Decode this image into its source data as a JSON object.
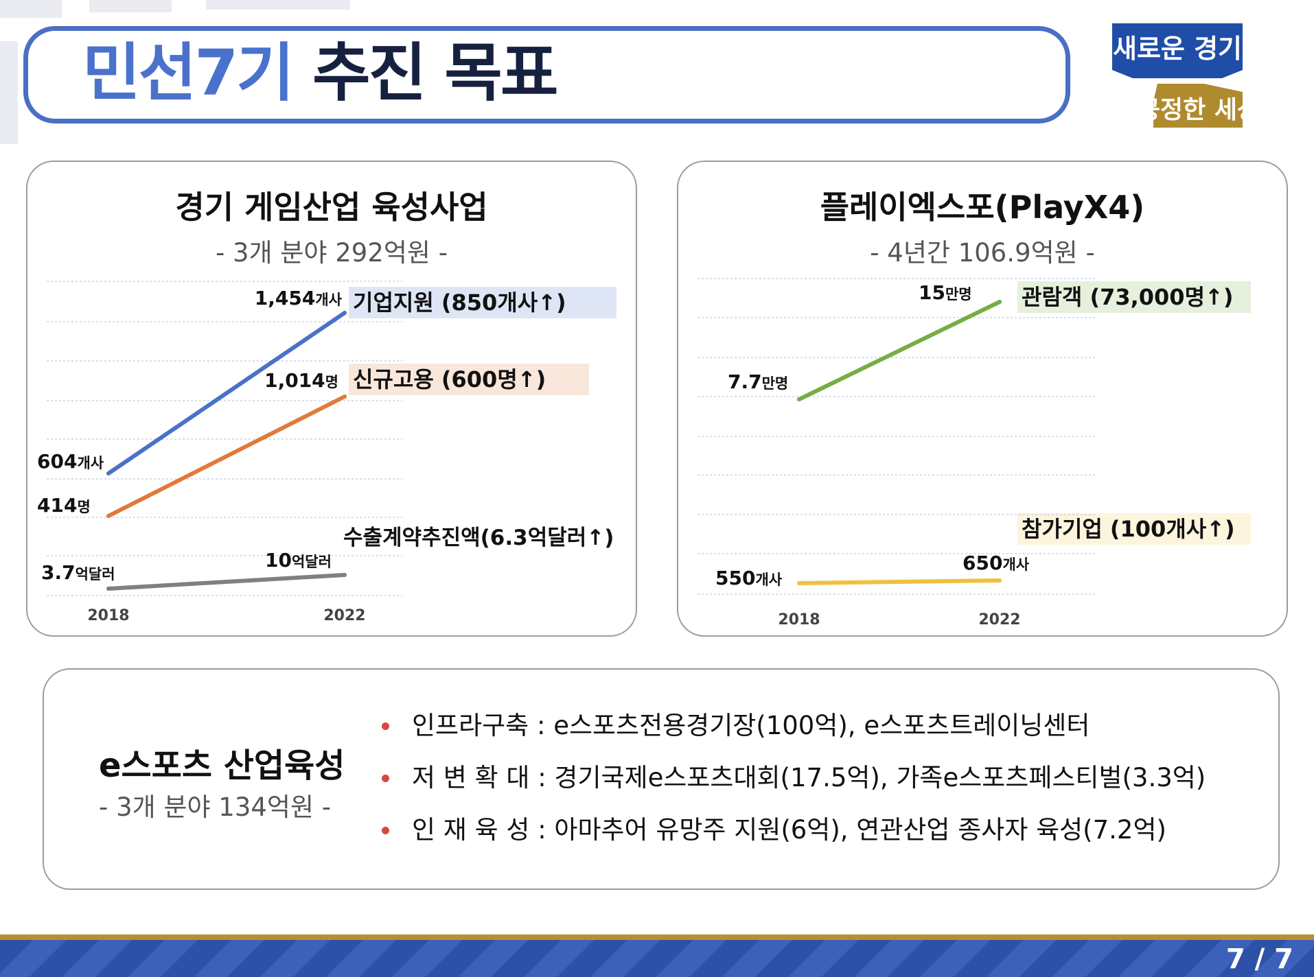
{
  "header": {
    "title_accent": "민선7기",
    "title_main": "추진 목표",
    "logo_top": "새로운 경기",
    "logo_bottom": "공정한 세상"
  },
  "left_panel": {
    "title": "경기 게임산업 육성사업",
    "subtitle": "- 3개 분야 292억원 -"
  },
  "right_panel": {
    "title": "플레이엑스포(PlayX4)",
    "subtitle": "- 4년간 106.9억원 -"
  },
  "chart_data": [
    {
      "type": "line",
      "title": "경기 게임산업 육성사업",
      "subtitle": "- 3개 분야 292억원 -",
      "categories": [
        "2018",
        "2022"
      ],
      "series": [
        {
          "name": "기업지원 (850개사↑)",
          "values": [
            604,
            1454
          ],
          "unit": "개사",
          "labels": [
            "604",
            "1,454"
          ],
          "color": "#4a72c8"
        },
        {
          "name": "신규고용 (600명↑)",
          "values": [
            414,
            1014
          ],
          "unit": "명",
          "labels": [
            "414",
            "1,014"
          ],
          "color": "#e07a3c"
        },
        {
          "name": "수출계약추진액(6.3억달러↑)",
          "values": [
            3.7,
            10
          ],
          "unit": "억달러",
          "labels": [
            "3.7",
            "10"
          ],
          "color": "#808080"
        }
      ],
      "grid": true
    },
    {
      "type": "line",
      "title": "플레이엑스포(PlayX4)",
      "subtitle": "- 4년간 106.9억원 -",
      "categories": [
        "2018",
        "2022"
      ],
      "series": [
        {
          "name": "관람객 (73,000명↑)",
          "values": [
            7.7,
            15
          ],
          "unit": "만명",
          "labels": [
            "7.7",
            "15"
          ],
          "color": "#76ad45"
        },
        {
          "name": "참가기업 (100개사↑)",
          "values": [
            550,
            650
          ],
          "unit": "개사",
          "labels": [
            "550",
            "650"
          ],
          "color": "#f0c040"
        }
      ],
      "grid": true
    }
  ],
  "esports": {
    "title": "e스포츠 산업육성",
    "subtitle": "- 3개 분야 134억원 -",
    "items": [
      "인프라구축 : e스포츠전용경기장(100억), e스포츠트레이닝센터",
      "저 변 확 대 : 경기국제e스포츠대회(17.5억), 가족e스포츠페스티벌(3.3억)",
      "인 재 육 성 : 아마추어 유망주 지원(6억), 연관산업 종사자 육성(7.2억)"
    ]
  },
  "footer": {
    "page": "7 / 7"
  }
}
